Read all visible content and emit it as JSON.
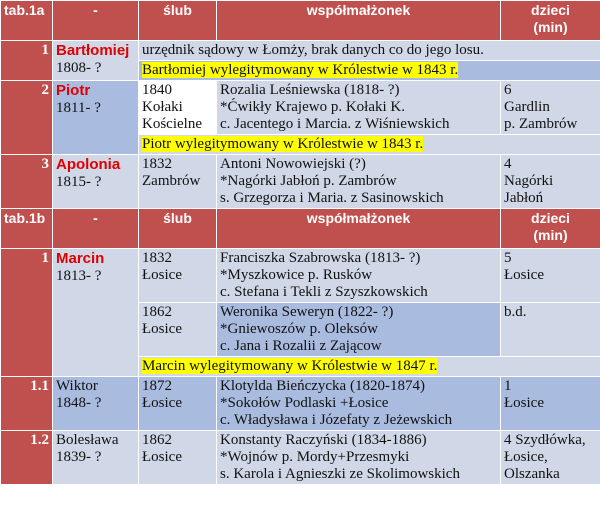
{
  "section_a": {
    "header": {
      "tab": "tab.1a",
      "dash": "-",
      "slub": "ślub",
      "spouse": "współmałżonek",
      "children": "dzieci\n(min)"
    },
    "bartlomiej": {
      "num": "1",
      "name": "Bartłomiej",
      "years": "1808- ?",
      "note": "urzędnik sądowy w Łomży, brak danych co do jego losu.",
      "legit": "Bartłomiej wylegitymowany w Królestwie w 1843 r."
    },
    "piotr": {
      "num": "2",
      "name": "Piotr",
      "years": "1811- ?",
      "slub": "1840\nKołaki\nKościelne",
      "spouse": "Rozalia Leśniewska (1818- ?)\n*Ćwikły Krajewo p. Kołaki K.\nc. Jacentego i Marcia. z Wiśniewskich",
      "children": "6\nGardlin\np. Zambrów",
      "legit": "Piotr wylegitymowany w Królestwie w 1843 r."
    },
    "apolonia": {
      "num": "3",
      "name": "Apolonia",
      "years": "1815- ?",
      "slub": "1832\nZambrów",
      "spouse": "Antoni Nowowiejski (?)\n*Nagórki Jabłoń p. Zambrów\ns. Grzegorza i Maria. z Sasinowskich",
      "children": "4\nNagórki\nJabłoń"
    }
  },
  "section_b": {
    "header": {
      "tab": "tab.1b",
      "dash": "-",
      "slub": "ślub",
      "spouse": "współmałżonek",
      "children": "dzieci\n(min)"
    },
    "marcin": {
      "num": "1",
      "name": "Marcin",
      "years": "1813- ?",
      "marriage1": {
        "slub": "1832\nŁosice",
        "spouse": "Franciszka Szabrowska (1813- ?)\n*Myszkowice p. Rusków\nc. Stefana i Tekli z Szyszkowskich",
        "children": "5\nŁosice"
      },
      "marriage2": {
        "slub": "1862\nŁosice",
        "spouse": "Weronika Seweryn (1822- ?)\n*Gniewoszów p. Oleksów\nc. Jana i Rozalii z Zającow",
        "children": "b.d."
      },
      "legit": "Marcin wylegitymowany w Królestwie w 1847 r."
    },
    "wiktor": {
      "num": "1.1",
      "name": "Wiktor",
      "years": "1848- ?",
      "slub": "1872\nŁosice",
      "spouse": "Klotylda Bieńczycka (1820-1874)\n*Sokołów Podlaski +Łosice\nc. Władysława i Józefaty z Jeżewskich",
      "children": "1\nŁosice"
    },
    "boleslawa": {
      "num": "1.2",
      "name": "Bolesława",
      "years": "1839- ?",
      "slub": "1862\nŁosice",
      "spouse": "Konstanty Raczyński (1834-1886)\n*Wojnów p. Mordy+Przesmyki\ns. Karola i Agnieszki ze Skolimowskich",
      "children": "4 Szydłówka,\nŁosice,\nOlszanka"
    }
  },
  "colors": {
    "header_red": "#c0504d",
    "row_light": "#d0d8e8",
    "row_mid": "#a9bce0",
    "highlight": "#ffff00",
    "name_red": "#e00000"
  }
}
